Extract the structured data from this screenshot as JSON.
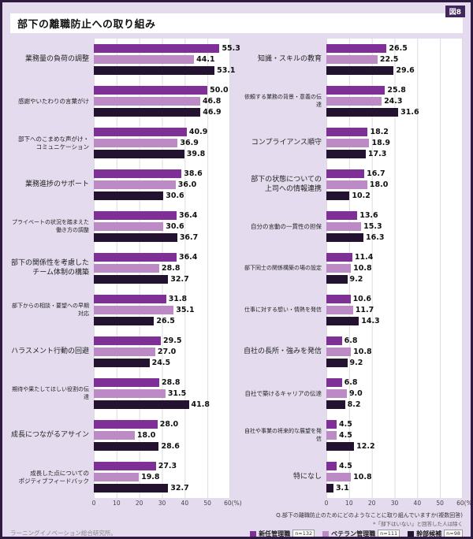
{
  "figure_tag": "図8",
  "title": "部下の離職防止への取り組み",
  "source": "ラーニングイノベーション総合研究所。",
  "question_note_line1": "Q.部下の離職防止のためにどのようなことに取り組んでいますか(複数回答)",
  "question_note_line2": "*「部下はいない」と回答した人は除く",
  "legend": [
    {
      "label": "新任管理職",
      "n": "n=132",
      "color": "#7e3096"
    },
    {
      "label": "ベテラン管理職",
      "n": "n=111",
      "color": "#bc8ac5"
    },
    {
      "label": "幹部候補",
      "n": "n=98",
      "color": "#241330"
    }
  ],
  "chart_data": {
    "type": "bar",
    "orientation": "horizontal",
    "title": "部下の離職防止への取り組み",
    "xlabel": "(%)",
    "xlim": [
      0,
      60
    ],
    "xmax": 60,
    "axis_ticks": [
      0,
      10,
      20,
      30,
      40,
      50,
      60
    ],
    "axis_unit": "(%)",
    "grid": true,
    "series_names": [
      "新任管理職",
      "ベテラン管理職",
      "幹部候補"
    ],
    "left_groups": [
      {
        "category": "業務量の負荷の調整",
        "values": [
          55.3,
          44.1,
          53.1
        ]
      },
      {
        "category": "感謝やいたわりの言葉がけ",
        "values": [
          50.0,
          46.8,
          46.9
        ]
      },
      {
        "category": "部下へのこまめな声がけ・\nコミュニケーション",
        "values": [
          40.9,
          36.9,
          39.8
        ]
      },
      {
        "category": "業務進捗のサポート",
        "values": [
          38.6,
          36.0,
          30.6
        ]
      },
      {
        "category": "プライベートの状況を踏まえた\n働き方の調整",
        "values": [
          36.4,
          30.6,
          36.7
        ]
      },
      {
        "category": "部下の関係性を考慮した\nチーム体制の構築",
        "values": [
          36.4,
          28.8,
          32.7
        ]
      },
      {
        "category": "部下からの相談・要望への早期対応",
        "values": [
          31.8,
          35.1,
          26.5
        ]
      },
      {
        "category": "ハラスメント行動の回避",
        "values": [
          29.5,
          27.0,
          24.5
        ]
      },
      {
        "category": "期待や果たしてほしい役割の伝達",
        "values": [
          28.8,
          31.5,
          41.8
        ]
      },
      {
        "category": "成長につながるアサイン",
        "values": [
          28.0,
          18.0,
          28.6
        ]
      },
      {
        "category": "成長した点についての\nポジティブフィードバック",
        "values": [
          27.3,
          19.8,
          32.7
        ]
      }
    ],
    "right_groups": [
      {
        "category": "知識・スキルの教育",
        "values": [
          26.5,
          22.5,
          29.6
        ]
      },
      {
        "category": "依頼する業務の背景・意義の伝達",
        "values": [
          25.8,
          24.3,
          31.6
        ]
      },
      {
        "category": "コンプライアンス順守",
        "values": [
          18.2,
          18.9,
          17.3
        ]
      },
      {
        "category": "部下の状態についての\n上司への情報連携",
        "values": [
          16.7,
          18.0,
          10.2
        ]
      },
      {
        "category": "自分の言動の一貫性の担保",
        "values": [
          13.6,
          15.3,
          16.3
        ]
      },
      {
        "category": "部下同士の関係構築の場の設定",
        "values": [
          11.4,
          10.8,
          9.2
        ]
      },
      {
        "category": "仕事に対する想い・情熱を発信",
        "values": [
          10.6,
          11.7,
          14.3
        ]
      },
      {
        "category": "自社の長所・強みを発信",
        "values": [
          6.8,
          10.8,
          9.2
        ]
      },
      {
        "category": "自社で築けるキャリアの伝達",
        "values": [
          6.8,
          9.0,
          8.2
        ]
      },
      {
        "category": "自社や事業の将来的な展望を発信",
        "values": [
          4.5,
          4.5,
          12.2
        ]
      },
      {
        "category": "特になし",
        "values": [
          4.5,
          10.8,
          3.1
        ]
      }
    ]
  }
}
